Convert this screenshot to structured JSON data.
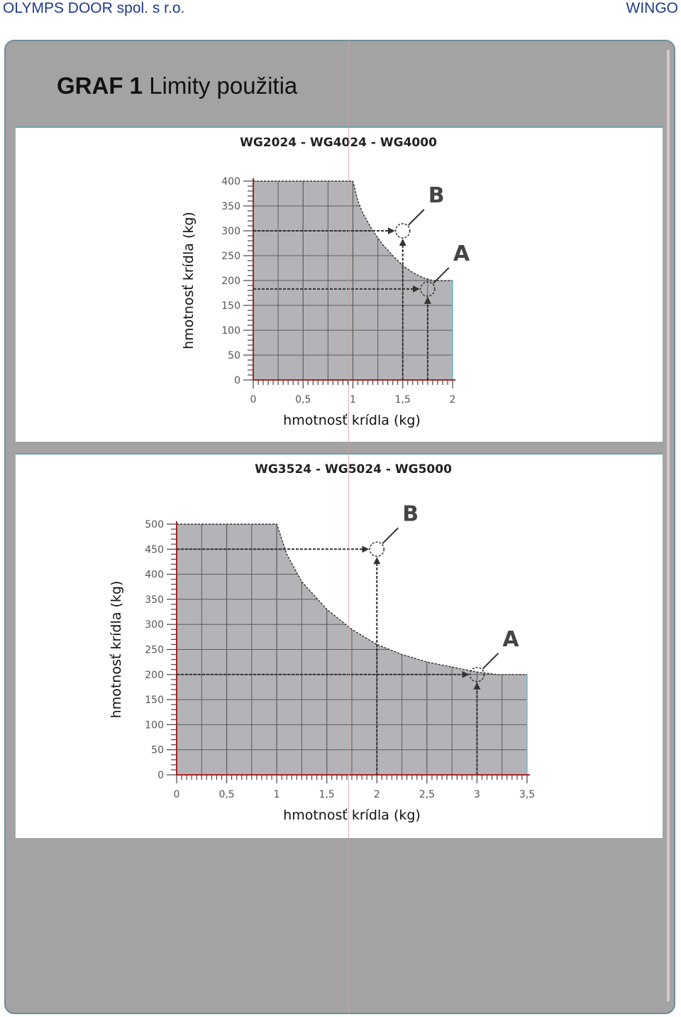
{
  "header": {
    "company": "OLYMPS DOOR spol. s r.o.",
    "product": "WINGO"
  },
  "page": {
    "title_bold": "GRAF 1",
    "title_rest": "Limity použitia"
  },
  "colors": {
    "panel": "#a3a3a3",
    "plot_fill": "#b4b4b8",
    "grid": "#5c5c5c",
    "axis": "#b02020",
    "card": "#ffffff"
  },
  "chart_data": [
    {
      "type": "area",
      "title": "WG2024 - WG4024 - WG4000",
      "ylabel": "hmotnosť krídla (kg)",
      "xlabel": "hmotnosť krídla (kg)",
      "xlim": [
        0,
        2
      ],
      "ylim": [
        0,
        400
      ],
      "xticks": [
        "0",
        "0,5",
        "1",
        "1,5",
        "2"
      ],
      "yticks": [
        "0",
        "50",
        "100",
        "150",
        "200",
        "250",
        "300",
        "350",
        "400"
      ],
      "grid": true,
      "limit_curve": {
        "x": [
          0,
          1.0,
          1.05,
          1.1,
          1.2,
          1.3,
          1.4,
          1.5,
          1.6,
          1.7,
          1.8,
          2.0
        ],
        "y": [
          400,
          400,
          360,
          335,
          300,
          272,
          250,
          230,
          216,
          206,
          200,
          200
        ]
      },
      "points": [
        {
          "label": "B",
          "x": 1.5,
          "y": 300
        },
        {
          "label": "A",
          "x": 1.75,
          "y": 183
        }
      ]
    },
    {
      "type": "area",
      "title": "WG3524 - WG5024 - WG5000",
      "ylabel": "hmotnosť krídla (kg)",
      "xlabel": "hmotnosť krídla (kg)",
      "xlim": [
        0,
        3.5
      ],
      "ylim": [
        0,
        500
      ],
      "xticks": [
        "0",
        "0,5",
        "1",
        "1,5",
        "2",
        "2,5",
        "3",
        "3,5"
      ],
      "yticks": [
        "0",
        "50",
        "100",
        "150",
        "200",
        "250",
        "300",
        "350",
        "400",
        "450",
        "500"
      ],
      "grid": true,
      "limit_curve": {
        "x": [
          0,
          1.0,
          1.1,
          1.25,
          1.5,
          1.75,
          2.0,
          2.25,
          2.5,
          2.75,
          3.0,
          3.2,
          3.5
        ],
        "y": [
          500,
          500,
          440,
          385,
          330,
          290,
          260,
          240,
          225,
          215,
          205,
          200,
          200
        ]
      },
      "points": [
        {
          "label": "B",
          "x": 2.0,
          "y": 450
        },
        {
          "label": "A",
          "x": 3.0,
          "y": 200
        }
      ]
    }
  ]
}
